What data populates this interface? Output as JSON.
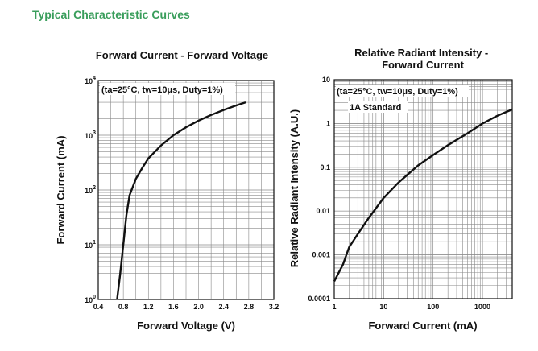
{
  "section_title": "Typical Characteristic Curves",
  "chart_data": [
    {
      "type": "line",
      "title": "Forward Current - Forward Voltage",
      "xlabel": "Forward Voltage (V)",
      "ylabel": "Forward Current (mA)",
      "xlim": [
        0.4,
        3.2
      ],
      "ylim": [
        1,
        10000
      ],
      "y_scale": "log",
      "x_ticks": [
        "0.4",
        "0.8",
        "1.2",
        "1.6",
        "2.0",
        "2.4",
        "2.8",
        "3.2"
      ],
      "y_tick_labels": [
        {
          "base": "10",
          "exp": "0"
        },
        {
          "base": "10",
          "exp": "1"
        },
        {
          "base": "10",
          "exp": "2"
        },
        {
          "base": "10",
          "exp": "3"
        },
        {
          "base": "10",
          "exp": "4"
        }
      ],
      "annotation": "(ta=25°C, tw=10μs, Duty=1%)",
      "grid": true,
      "series": [
        {
          "x": [
            0.7,
            0.75,
            0.8,
            0.85,
            0.9,
            1.0,
            1.1,
            1.2,
            1.4,
            1.6,
            1.8,
            2.0,
            2.2,
            2.4,
            2.6,
            2.75
          ],
          "y": [
            1,
            3,
            10,
            35,
            80,
            160,
            250,
            380,
            650,
            1000,
            1400,
            1850,
            2350,
            2900,
            3500,
            4000
          ]
        }
      ]
    },
    {
      "type": "line",
      "title": "Relative Radiant Intensity - Forward Current",
      "xlabel": "Forward Current (mA)",
      "ylabel": "Relative Radiant Intensity (A.U.)",
      "xlim": [
        1,
        4000
      ],
      "ylim": [
        0.0001,
        10
      ],
      "x_scale": "log",
      "y_scale": "log",
      "x_ticks": [
        "1",
        "10",
        "100",
        "1000"
      ],
      "y_ticks": [
        "0.0001",
        "0.001",
        "0.01",
        "0.1",
        "1",
        "10"
      ],
      "annotation": "(ta=25°C, tw=10μs, Duty=1%)",
      "annotation2": "1A Standard",
      "grid": true,
      "series": [
        {
          "x": [
            1,
            1.5,
            2,
            3,
            5,
            10,
            20,
            50,
            100,
            200,
            500,
            1000,
            2000,
            4000
          ],
          "y": [
            0.00025,
            0.0006,
            0.0015,
            0.003,
            0.007,
            0.02,
            0.045,
            0.11,
            0.19,
            0.32,
            0.6,
            1,
            1.5,
            2.1
          ]
        }
      ]
    }
  ]
}
